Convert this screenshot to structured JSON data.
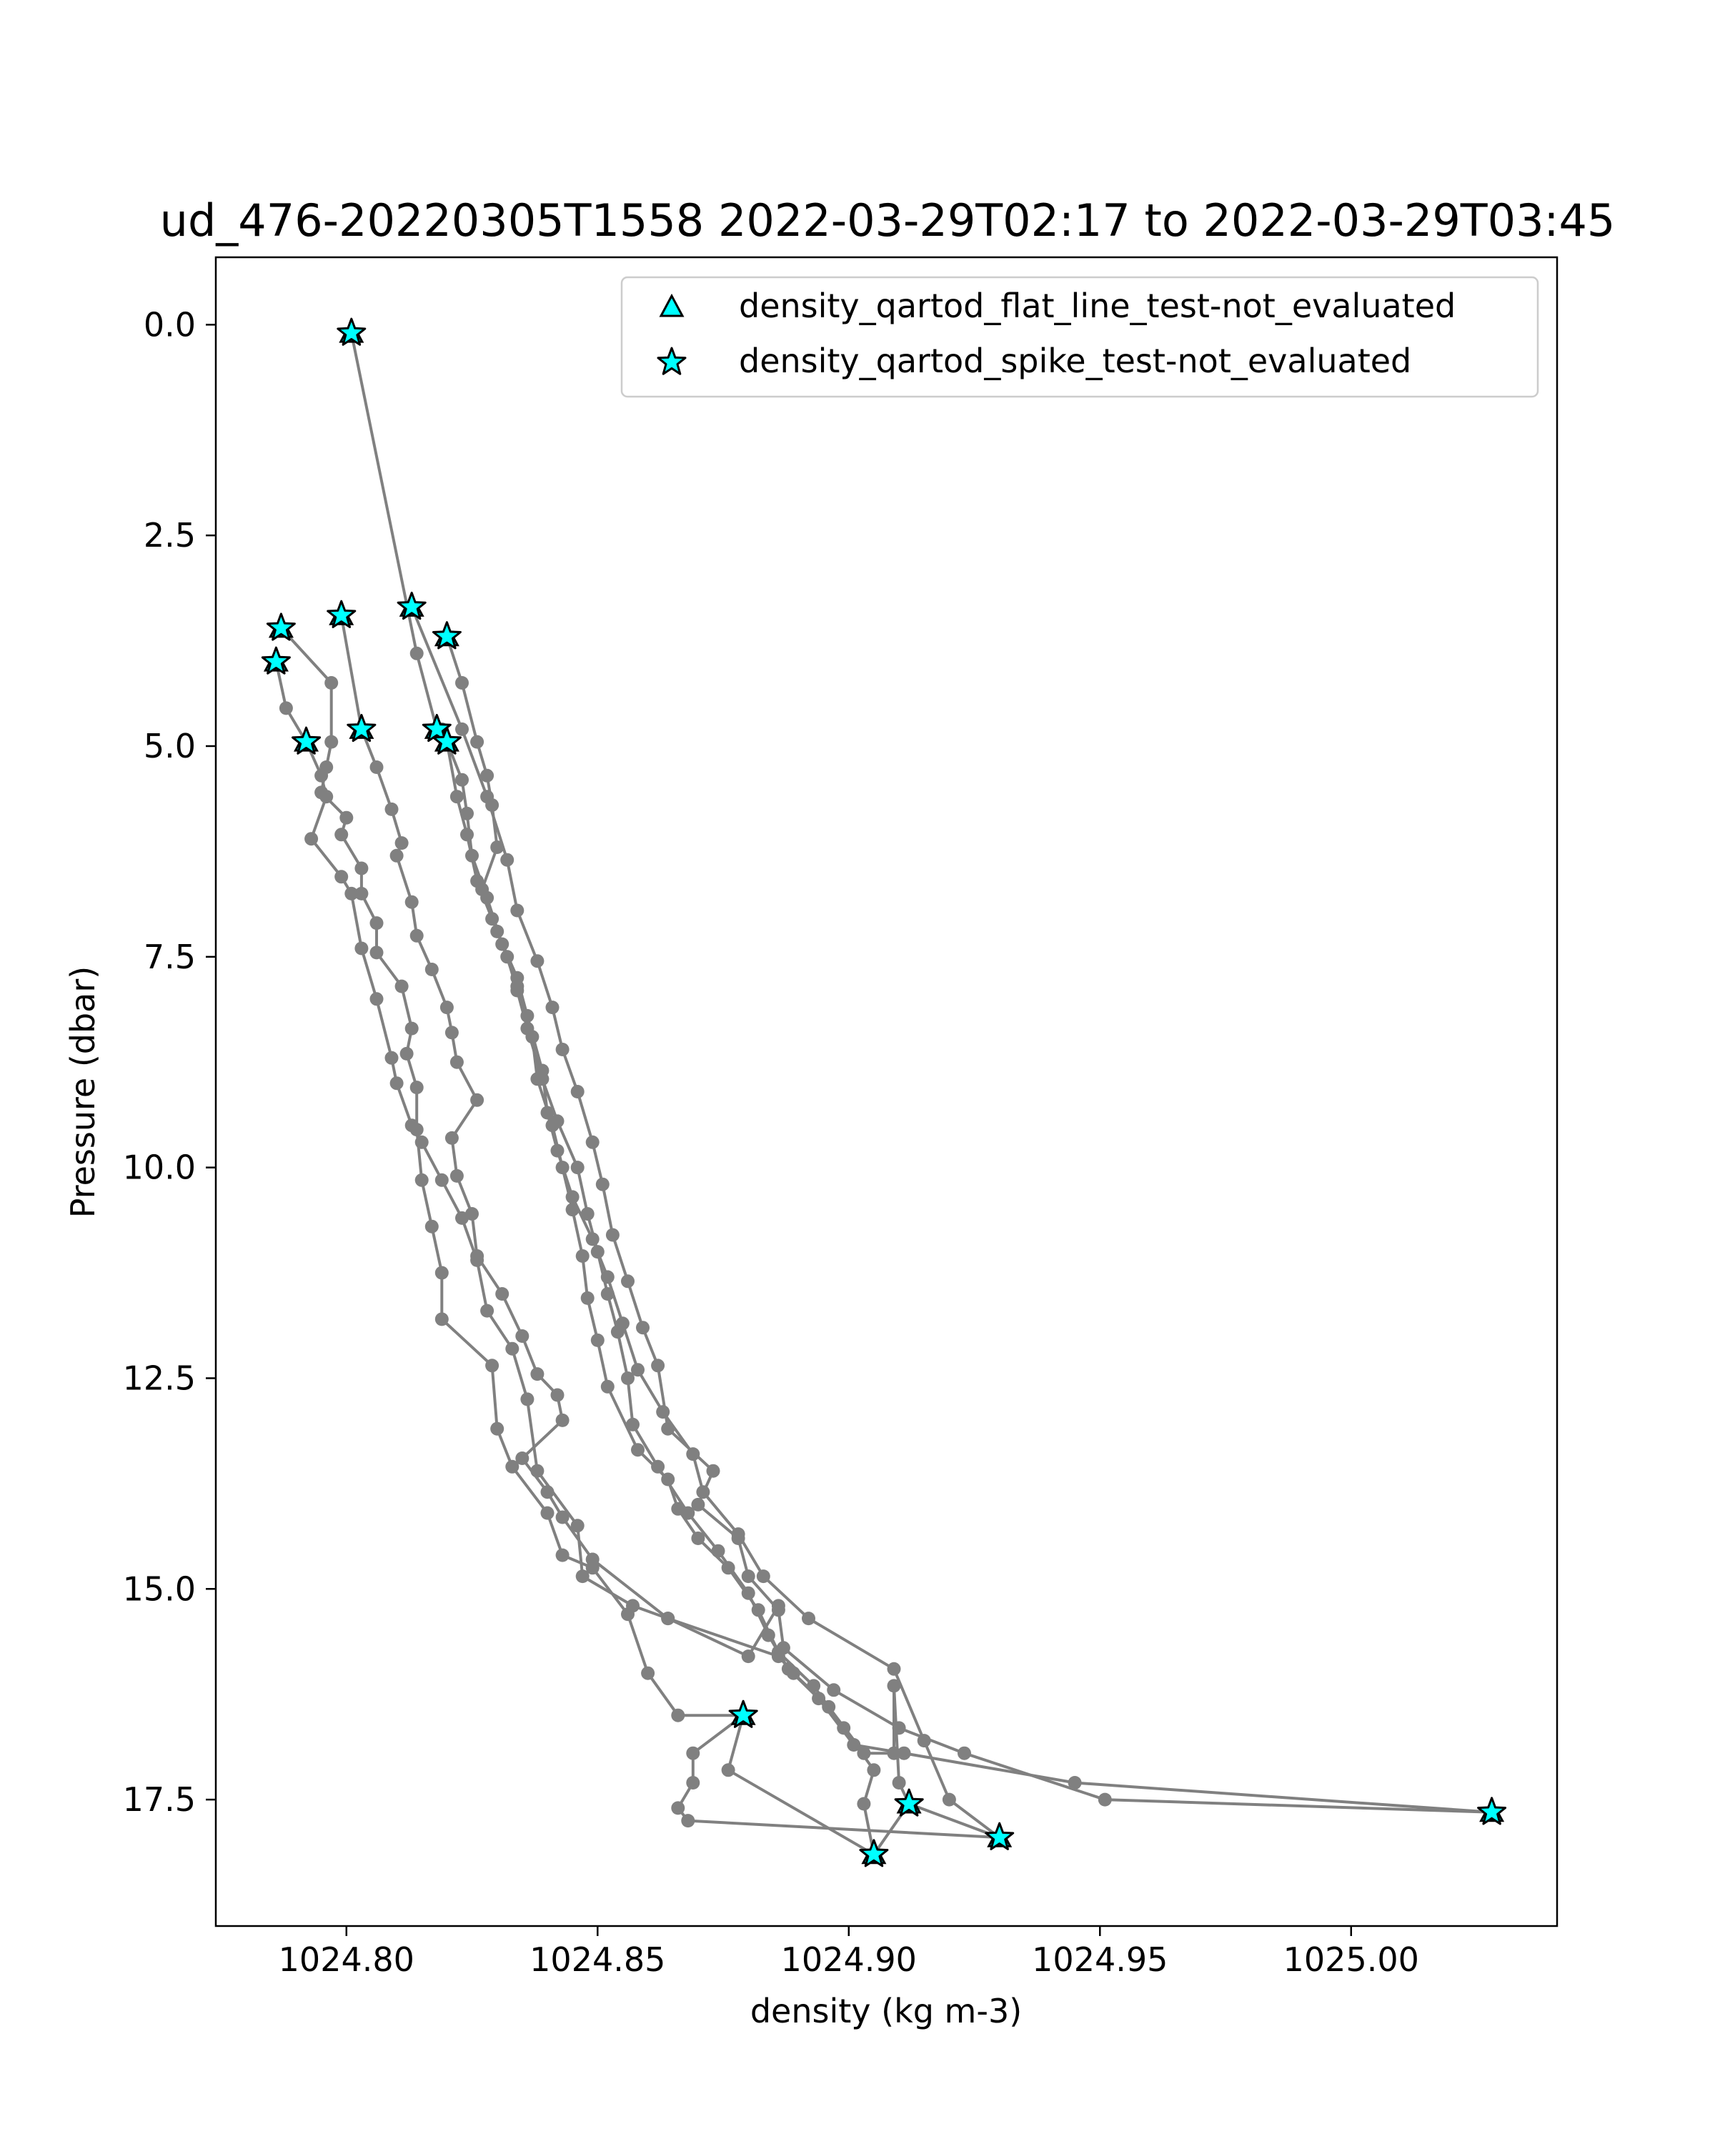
{
  "chart_data": {
    "type": "scatter",
    "title": "ud_476-20220305T1558 2022-03-29T02:17 to 2022-03-29T03:45",
    "xlabel": "density (kg m-3)",
    "ylabel": "Pressure (dbar)",
    "xlim": [
      1024.774,
      1025.041
    ],
    "ylim": [
      19.0,
      -0.8
    ],
    "y_inverted": true,
    "grid": false,
    "legend_position": "top-right",
    "xticks": [
      {
        "value": 1024.8,
        "label": "1024.80"
      },
      {
        "value": 1024.85,
        "label": "1024.85"
      },
      {
        "value": 1024.9,
        "label": "1024.90"
      },
      {
        "value": 1024.95,
        "label": "1024.95"
      },
      {
        "value": 1025.0,
        "label": "1025.00"
      }
    ],
    "yticks": [
      {
        "value": 0.0,
        "label": "0.0"
      },
      {
        "value": 2.5,
        "label": "2.5"
      },
      {
        "value": 5.0,
        "label": "5.0"
      },
      {
        "value": 7.5,
        "label": "7.5"
      },
      {
        "value": 10.0,
        "label": "10.0"
      },
      {
        "value": 12.5,
        "label": "12.5"
      },
      {
        "value": 15.0,
        "label": "15.0"
      },
      {
        "value": 17.5,
        "label": "17.5"
      }
    ],
    "colors": {
      "line": "#808080",
      "marker": "#808080",
      "flag_fill": "#00ffff",
      "flag_edge": "#000000"
    },
    "legend": [
      {
        "label": "density_qartod_flat_line_test-not_evaluated",
        "marker": "triangle"
      },
      {
        "label": "density_qartod_spike_test-not_evaluated",
        "marker": "star"
      }
    ],
    "series": [
      {
        "points": [
          [
            1024.801,
            0.1
          ],
          [
            1024.814,
            3.9
          ],
          [
            1024.818,
            4.8
          ]
        ]
      },
      {
        "points": [
          [
            1024.799,
            3.45
          ],
          [
            1024.803,
            4.8
          ]
        ]
      },
      {
        "points": [
          [
            1024.787,
            3.6
          ],
          [
            1024.797,
            4.25
          ],
          [
            1024.797,
            4.95
          ],
          [
            1024.796,
            5.25
          ],
          [
            1024.795,
            5.55
          ],
          [
            1024.8,
            5.85
          ],
          [
            1024.799,
            6.05
          ],
          [
            1024.803,
            6.45
          ],
          [
            1024.803,
            6.75
          ],
          [
            1024.806,
            7.1
          ],
          [
            1024.806,
            7.45
          ],
          [
            1024.811,
            7.85
          ],
          [
            1024.813,
            8.35
          ],
          [
            1024.812,
            8.65
          ],
          [
            1024.814,
            9.05
          ],
          [
            1024.814,
            9.55
          ],
          [
            1024.815,
            10.15
          ],
          [
            1024.817,
            10.7
          ],
          [
            1024.819,
            11.25
          ],
          [
            1024.819,
            11.8
          ],
          [
            1024.829,
            12.35
          ],
          [
            1024.83,
            13.1
          ],
          [
            1024.833,
            13.55
          ],
          [
            1024.84,
            14.1
          ],
          [
            1024.843,
            14.6
          ],
          [
            1024.849,
            14.75
          ],
          [
            1024.856,
            15.3
          ],
          [
            1024.86,
            16.0
          ],
          [
            1024.866,
            16.5
          ],
          [
            1024.879,
            16.5
          ]
        ]
      },
      {
        "points": [
          [
            1024.786,
            4.0
          ],
          [
            1024.788,
            4.55
          ],
          [
            1024.792,
            4.95
          ],
          [
            1024.795,
            5.35
          ],
          [
            1024.796,
            5.6
          ],
          [
            1024.793,
            6.1
          ],
          [
            1024.799,
            6.55
          ],
          [
            1024.801,
            6.75
          ],
          [
            1024.803,
            7.4
          ],
          [
            1024.806,
            8.0
          ],
          [
            1024.809,
            8.7
          ],
          [
            1024.81,
            9.0
          ],
          [
            1024.813,
            9.5
          ],
          [
            1024.815,
            9.7
          ],
          [
            1024.819,
            10.15
          ],
          [
            1024.823,
            10.6
          ],
          [
            1024.826,
            11.1
          ],
          [
            1024.828,
            11.7
          ],
          [
            1024.833,
            12.15
          ],
          [
            1024.836,
            12.75
          ],
          [
            1024.838,
            13.6
          ],
          [
            1024.846,
            14.25
          ],
          [
            1024.847,
            14.85
          ],
          [
            1024.857,
            15.2
          ],
          [
            1024.864,
            15.35
          ],
          [
            1024.88,
            15.8
          ],
          [
            1024.886,
            15.2
          ]
        ]
      },
      {
        "points": [
          [
            1024.803,
            4.8
          ],
          [
            1024.806,
            5.25
          ],
          [
            1024.809,
            5.75
          ],
          [
            1024.811,
            6.15
          ],
          [
            1024.81,
            6.3
          ],
          [
            1024.813,
            6.85
          ],
          [
            1024.814,
            7.25
          ],
          [
            1024.817,
            7.65
          ],
          [
            1024.82,
            8.1
          ],
          [
            1024.821,
            8.4
          ],
          [
            1024.822,
            8.75
          ],
          [
            1024.826,
            9.2
          ],
          [
            1024.821,
            9.65
          ],
          [
            1024.822,
            10.1
          ],
          [
            1024.825,
            10.55
          ],
          [
            1024.826,
            11.05
          ],
          [
            1024.831,
            11.5
          ],
          [
            1024.835,
            12.0
          ],
          [
            1024.838,
            12.45
          ],
          [
            1024.842,
            12.7
          ],
          [
            1024.843,
            13.0
          ],
          [
            1024.835,
            13.45
          ],
          [
            1024.84,
            13.85
          ],
          [
            1024.843,
            14.15
          ],
          [
            1024.849,
            14.65
          ],
          [
            1024.864,
            15.35
          ],
          [
            1024.886,
            15.8
          ],
          [
            1024.889,
            16.0
          ],
          [
            1024.896,
            16.4
          ],
          [
            1024.903,
            16.95
          ],
          [
            1024.909,
            16.95
          ],
          [
            1024.909,
            16.15
          ],
          [
            1024.91,
            17.3
          ],
          [
            1024.912,
            17.55
          ],
          [
            1024.93,
            17.95
          ]
        ]
      },
      {
        "points": [
          [
            1024.82,
            4.95
          ],
          [
            1024.822,
            5.6
          ],
          [
            1024.824,
            6.05
          ],
          [
            1024.826,
            6.6
          ],
          [
            1024.829,
            7.05
          ],
          [
            1024.832,
            7.5
          ],
          [
            1024.834,
            7.9
          ],
          [
            1024.836,
            8.35
          ],
          [
            1024.839,
            8.95
          ],
          [
            1024.842,
            9.45
          ],
          [
            1024.846,
            10.0
          ],
          [
            1024.848,
            10.55
          ],
          [
            1024.85,
            11.0
          ],
          [
            1024.852,
            11.5
          ],
          [
            1024.854,
            11.95
          ],
          [
            1024.856,
            12.5
          ],
          [
            1024.857,
            13.05
          ],
          [
            1024.862,
            13.55
          ],
          [
            1024.868,
            14.1
          ],
          [
            1024.874,
            14.55
          ],
          [
            1024.88,
            15.05
          ],
          [
            1024.884,
            15.55
          ],
          [
            1024.888,
            15.95
          ],
          [
            1024.894,
            16.3
          ],
          [
            1024.901,
            16.85
          ],
          [
            1024.911,
            16.95
          ],
          [
            1024.945,
            17.3
          ],
          [
            1025.028,
            17.65
          ]
        ]
      },
      {
        "points": [
          [
            1024.819,
            4.8
          ],
          [
            1024.823,
            5.4
          ],
          [
            1024.824,
            5.8
          ],
          [
            1024.825,
            6.3
          ],
          [
            1024.828,
            6.8
          ],
          [
            1024.831,
            7.35
          ],
          [
            1024.834,
            7.85
          ],
          [
            1024.837,
            8.45
          ],
          [
            1024.838,
            8.95
          ],
          [
            1024.841,
            9.5
          ],
          [
            1024.843,
            10.0
          ],
          [
            1024.845,
            10.5
          ],
          [
            1024.847,
            11.05
          ],
          [
            1024.848,
            11.55
          ],
          [
            1024.85,
            12.05
          ],
          [
            1024.852,
            12.6
          ],
          [
            1024.858,
            13.35
          ],
          [
            1024.864,
            13.7
          ],
          [
            1024.866,
            14.05
          ],
          [
            1024.87,
            14.4
          ],
          [
            1024.876,
            14.75
          ],
          [
            1024.882,
            15.25
          ],
          [
            1024.886,
            15.75
          ],
          [
            1024.893,
            16.15
          ],
          [
            1024.899,
            16.65
          ],
          [
            1024.905,
            17.15
          ],
          [
            1024.903,
            17.55
          ],
          [
            1024.905,
            18.15
          ]
        ]
      },
      {
        "points": [
          [
            1024.82,
            3.7
          ],
          [
            1024.823,
            4.25
          ],
          [
            1024.826,
            4.95
          ],
          [
            1024.828,
            5.35
          ],
          [
            1024.829,
            5.7
          ],
          [
            1024.83,
            6.2
          ],
          [
            1024.827,
            6.7
          ],
          [
            1024.83,
            7.2
          ],
          [
            1024.834,
            7.75
          ],
          [
            1024.836,
            8.2
          ],
          [
            1024.839,
            8.85
          ],
          [
            1024.84,
            9.35
          ],
          [
            1024.842,
            9.8
          ],
          [
            1024.845,
            10.35
          ],
          [
            1024.849,
            10.85
          ],
          [
            1024.852,
            11.3
          ],
          [
            1024.855,
            11.85
          ],
          [
            1024.858,
            12.4
          ],
          [
            1024.863,
            12.9
          ],
          [
            1024.869,
            13.4
          ],
          [
            1024.871,
            13.85
          ],
          [
            1024.878,
            14.35
          ],
          [
            1024.883,
            14.85
          ],
          [
            1024.892,
            15.35
          ],
          [
            1024.909,
            15.95
          ],
          [
            1024.915,
            16.8
          ],
          [
            1024.92,
            17.5
          ],
          [
            1024.93,
            17.95
          ]
        ]
      },
      {
        "points": [
          [
            1024.813,
            3.35
          ],
          [
            1024.823,
            4.8
          ],
          [
            1024.828,
            5.6
          ],
          [
            1024.832,
            6.35
          ],
          [
            1024.834,
            6.95
          ],
          [
            1024.838,
            7.55
          ],
          [
            1024.841,
            8.1
          ],
          [
            1024.843,
            8.6
          ],
          [
            1024.846,
            9.1
          ],
          [
            1024.849,
            9.7
          ],
          [
            1024.851,
            10.2
          ],
          [
            1024.853,
            10.8
          ],
          [
            1024.856,
            11.35
          ],
          [
            1024.859,
            11.9
          ],
          [
            1024.862,
            12.35
          ],
          [
            1024.864,
            13.1
          ],
          [
            1024.873,
            13.6
          ],
          [
            1024.87,
            14.0
          ],
          [
            1024.878,
            14.4
          ],
          [
            1024.88,
            14.85
          ],
          [
            1024.886,
            15.25
          ],
          [
            1024.887,
            15.7
          ],
          [
            1024.897,
            16.2
          ],
          [
            1024.91,
            16.65
          ],
          [
            1024.923,
            16.95
          ],
          [
            1024.951,
            17.5
          ],
          [
            1025.028,
            17.65
          ]
        ]
      },
      {
        "points": [
          [
            1024.879,
            16.5
          ],
          [
            1024.869,
            16.95
          ],
          [
            1024.869,
            17.3
          ],
          [
            1024.866,
            17.6
          ],
          [
            1024.868,
            17.75
          ],
          [
            1024.93,
            17.95
          ]
        ]
      },
      {
        "points": [
          [
            1024.879,
            16.5
          ],
          [
            1024.876,
            17.15
          ],
          [
            1024.905,
            18.15
          ]
        ]
      },
      {
        "points": [
          [
            1024.905,
            18.15
          ],
          [
            1024.912,
            17.55
          ]
        ]
      }
    ],
    "flagged_points": [
      [
        1024.801,
        0.1
      ],
      [
        1024.813,
        3.35
      ],
      [
        1024.799,
        3.45
      ],
      [
        1024.787,
        3.6
      ],
      [
        1024.82,
        3.7
      ],
      [
        1024.786,
        4.0
      ],
      [
        1024.803,
        4.8
      ],
      [
        1024.818,
        4.8
      ],
      [
        1024.792,
        4.95
      ],
      [
        1024.82,
        4.95
      ],
      [
        1024.879,
        16.5
      ],
      [
        1024.912,
        17.55
      ],
      [
        1025.028,
        17.65
      ],
      [
        1024.93,
        17.95
      ],
      [
        1024.905,
        18.15
      ]
    ]
  }
}
